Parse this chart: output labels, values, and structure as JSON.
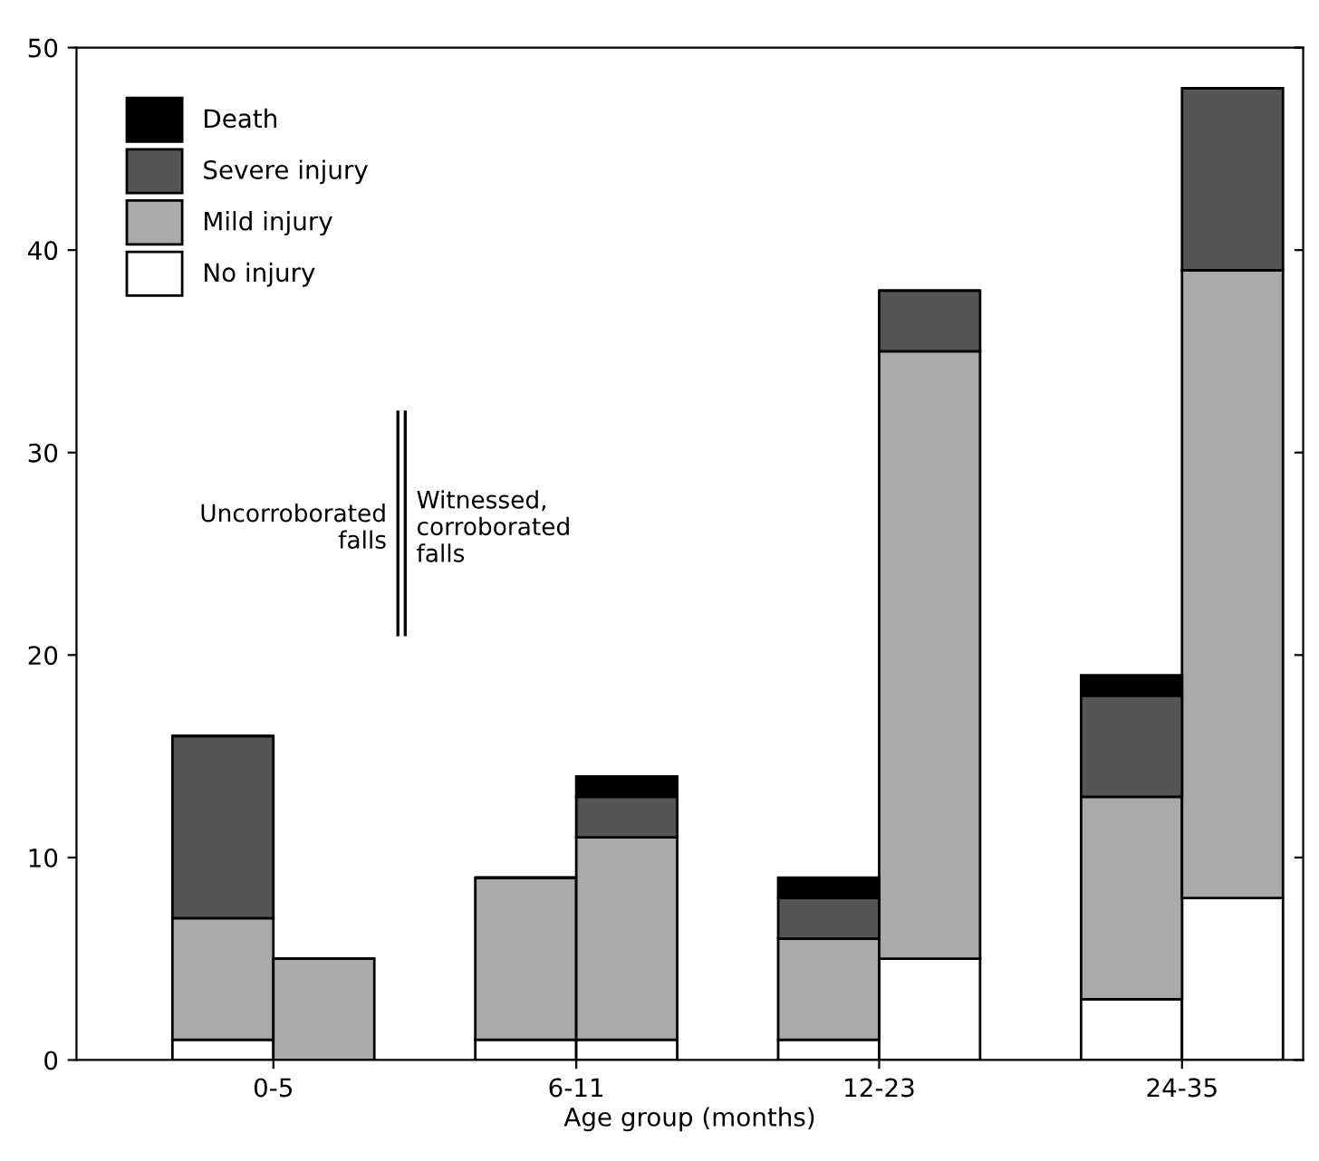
{
  "chart_data": {
    "type": "bar",
    "stacked": true,
    "xlabel": "Age group (months)",
    "categories": [
      "0-5",
      null,
      null,
      "6-11",
      null,
      null,
      "12-23",
      null,
      null,
      "24-35",
      null
    ],
    "series": [
      {
        "name": "No injury",
        "color": "#ffffff",
        "values": [
          1,
          0,
          null,
          1,
          1,
          null,
          1,
          5,
          null,
          3,
          8
        ]
      },
      {
        "name": "Mild injury",
        "color": "#aaaaaa",
        "values": [
          6,
          5,
          null,
          8,
          10,
          null,
          5,
          30,
          null,
          10,
          31
        ]
      },
      {
        "name": "Severe injury",
        "color": "#555555",
        "values": [
          9,
          0,
          null,
          0,
          2,
          null,
          2,
          3,
          null,
          5,
          9
        ]
      },
      {
        "name": "Death",
        "color": "#000000",
        "values": [
          0,
          0,
          null,
          0,
          1,
          null,
          1,
          0,
          null,
          1,
          0
        ]
      }
    ],
    "ylim": [
      0,
      50
    ],
    "yticks": [
      0,
      10,
      20,
      30,
      40,
      50
    ],
    "grid": false,
    "legend": "top left",
    "annotations": [
      "Uncorroborated\nfalls",
      "Witnessed,\ncorroborated\nfalls"
    ]
  }
}
